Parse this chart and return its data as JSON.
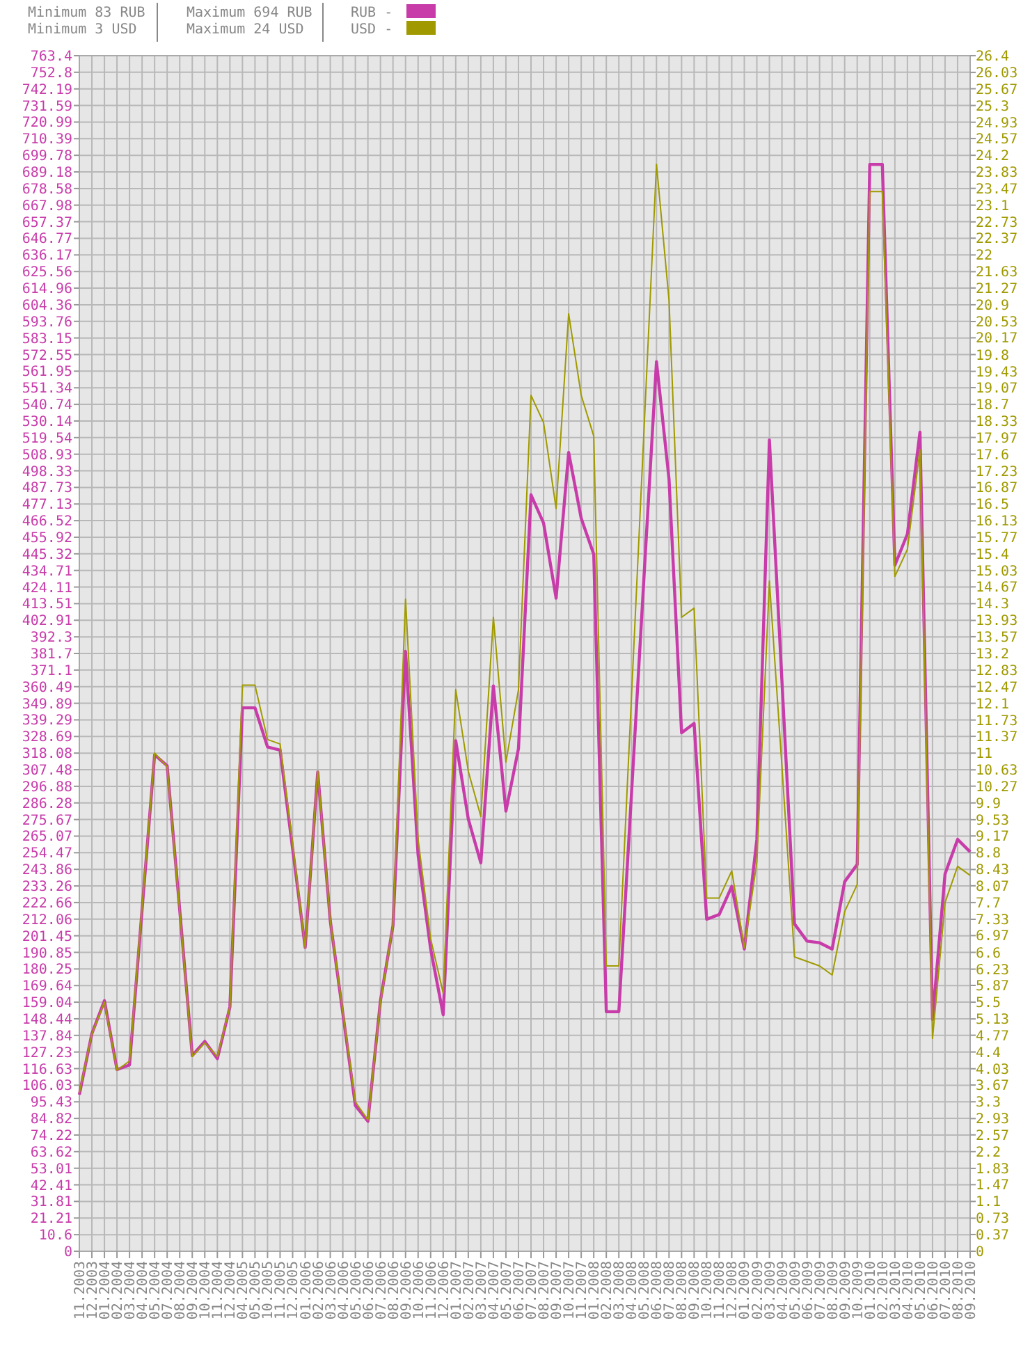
{
  "chart_data": {
    "type": "line",
    "annotations": [
      "Minimum 83 RUB",
      "Minimum 3 USD",
      "Maximum 694 RUB",
      "Maximum 24 USD"
    ],
    "categories": [
      "11.2003",
      "12.2003",
      "01.2004",
      "02.2004",
      "03.2004",
      "04.2004",
      "05.2004",
      "07.2004",
      "08.2004",
      "09.2004",
      "10.2004",
      "11.2004",
      "12.2004",
      "04.2005",
      "05.2005",
      "10.2005",
      "11.2005",
      "12.2005",
      "01.2006",
      "02.2006",
      "03.2006",
      "04.2006",
      "05.2006",
      "06.2006",
      "07.2006",
      "08.2006",
      "09.2006",
      "10.2006",
      "11.2006",
      "12.2006",
      "01.2007",
      "02.2007",
      "03.2007",
      "04.2007",
      "05.2007",
      "06.2007",
      "07.2007",
      "08.2007",
      "09.2007",
      "10.2007",
      "11.2007",
      "01.2008",
      "02.2008",
      "03.2008",
      "04.2008",
      "05.2008",
      "06.2008",
      "07.2008",
      "08.2008",
      "09.2008",
      "10.2008",
      "11.2008",
      "12.2008",
      "01.2009",
      "02.2009",
      "03.2009",
      "04.2009",
      "05.2009",
      "06.2009",
      "07.2009",
      "08.2009",
      "09.2009",
      "10.2009",
      "01.2010",
      "02.2010",
      "03.2010",
      "04.2010",
      "05.2010",
      "06.2010",
      "07.2010",
      "08.2010",
      "09.2010"
    ],
    "series": [
      {
        "name": "RUB -",
        "color": "#c83caa",
        "values": [
          100,
          139,
          160,
          116,
          119,
          218,
          317,
          310,
          218,
          125,
          134,
          123,
          156,
          347,
          347,
          322,
          320,
          257,
          194,
          306,
          211,
          152,
          93,
          83,
          160,
          208,
          383,
          253,
          193,
          151,
          326,
          276,
          248,
          361,
          281,
          321,
          483,
          465,
          417,
          510,
          468,
          445,
          153,
          153,
          291,
          430,
          568,
          493,
          331,
          337,
          212,
          215,
          233,
          193,
          263,
          518,
          364,
          209,
          198,
          197,
          193,
          236,
          247,
          694,
          694,
          438,
          458,
          523,
          148,
          241,
          263,
          255
        ]
      },
      {
        "name": "USD -",
        "color": "#a09a00",
        "axis": "y2",
        "values": [
          3.5,
          4.8,
          5.5,
          4.0,
          4.2,
          7.6,
          11.0,
          10.7,
          7.5,
          4.3,
          4.6,
          4.3,
          5.4,
          12.5,
          12.5,
          11.3,
          11.2,
          9.0,
          6.7,
          10.6,
          7.3,
          5.3,
          3.3,
          2.9,
          5.5,
          7.2,
          14.4,
          9.1,
          6.9,
          5.7,
          12.4,
          10.6,
          9.6,
          14.0,
          10.8,
          12.4,
          18.9,
          18.3,
          16.4,
          20.7,
          18.9,
          18.0,
          6.3,
          6.3,
          12.2,
          18.1,
          24.0,
          21.0,
          14.0,
          14.2,
          7.8,
          7.8,
          8.4,
          6.7,
          8.6,
          14.8,
          10.7,
          6.5,
          6.4,
          6.3,
          6.1,
          7.5,
          8.1,
          23.4,
          23.4,
          14.9,
          15.5,
          17.7,
          4.7,
          7.7,
          8.5,
          8.3
        ]
      }
    ],
    "ylim": [
      0,
      763.4
    ],
    "yticks": [
      0,
      10.6,
      21.21,
      31.81,
      42.41,
      53.01,
      63.62,
      74.22,
      84.82,
      95.43,
      106.03,
      116.63,
      127.23,
      137.84,
      148.44,
      159.04,
      169.64,
      180.25,
      190.85,
      201.45,
      212.06,
      222.66,
      233.26,
      243.86,
      254.47,
      265.07,
      275.67,
      286.28,
      296.88,
      307.48,
      318.08,
      328.69,
      339.29,
      349.89,
      360.49,
      371.1,
      381.7,
      392.3,
      402.91,
      413.51,
      424.11,
      434.71,
      445.32,
      455.92,
      466.52,
      477.13,
      487.73,
      498.33,
      508.93,
      519.54,
      530.14,
      540.74,
      551.34,
      561.95,
      572.55,
      583.15,
      593.76,
      604.36,
      614.96,
      625.56,
      636.17,
      646.77,
      657.37,
      667.98,
      678.58,
      689.18,
      699.78,
      710.39,
      720.99,
      731.59,
      742.19,
      752.8,
      763.4
    ],
    "y2lim": [
      0,
      26.4
    ],
    "y2ticks": [
      0,
      0.37,
      0.73,
      1.1,
      1.47,
      1.83,
      2.2,
      2.57,
      2.93,
      3.3,
      3.67,
      4.03,
      4.4,
      4.77,
      5.13,
      5.5,
      5.87,
      6.23,
      6.6,
      6.97,
      7.33,
      7.7,
      8.07,
      8.43,
      8.8,
      9.17,
      9.53,
      9.9,
      10.27,
      10.63,
      11,
      11.37,
      11.73,
      12.1,
      12.47,
      12.83,
      13.2,
      13.57,
      13.93,
      14.3,
      14.67,
      15.03,
      15.4,
      15.77,
      16.13,
      16.5,
      16.87,
      17.23,
      17.6,
      17.97,
      18.33,
      18.7,
      19.07,
      19.43,
      19.8,
      20.17,
      20.53,
      20.9,
      21.27,
      21.63,
      22,
      22.37,
      22.73,
      23.1,
      23.47,
      23.83,
      24.2,
      24.57,
      24.93,
      25.3,
      25.67,
      26.03,
      26.4
    ],
    "grid": true,
    "legend": "top",
    "marker": "none",
    "line_style": "solid"
  }
}
